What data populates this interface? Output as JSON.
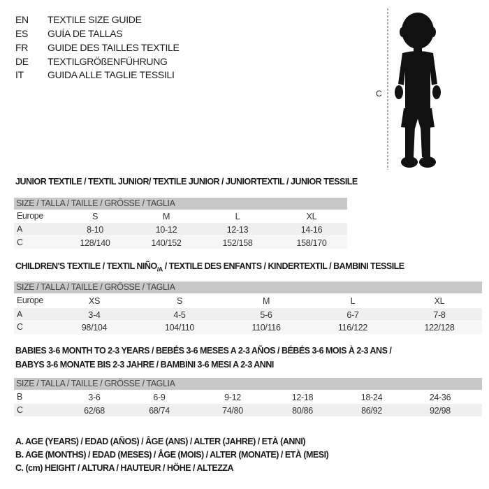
{
  "languages": [
    {
      "code": "EN",
      "title": "TEXTILE SIZE GUIDE"
    },
    {
      "code": "ES",
      "title": "GUÍA DE TALLAS"
    },
    {
      "code": "FR",
      "title": "GUIDE DES TAILLES TEXTILE"
    },
    {
      "code": "DE",
      "title": "TEXTILGRÖßENFÜHRUNG"
    },
    {
      "code": "IT",
      "title": "GUIDA ALLE TAGLIE TESSILI"
    }
  ],
  "figure": {
    "height_label": "C",
    "icon": "child-silhouette"
  },
  "junior": {
    "title": "JUNIOR TEXTILE / TEXTIL JUNIOR/ TEXTILE JUNIOR / JUNIORTEXTIL / JUNIOR TESSILE",
    "header": "SIZE / TALLA / TAILLE / GRÖSSE / TAGLIA",
    "rows": [
      {
        "label": "Europe",
        "values": [
          "S",
          "M",
          "L",
          "XL"
        ]
      },
      {
        "label": "A",
        "values": [
          "8-10",
          "10-12",
          "12-13",
          "14-16"
        ]
      },
      {
        "label": "C",
        "values": [
          "128/140",
          "140/152",
          "152/158",
          "158/170"
        ]
      }
    ]
  },
  "children": {
    "title_a": "CHILDREN'S TEXTILE / TEXTIL NIÑO",
    "title_sub": "/A",
    "title_b": " / TEXTILE DES ENFANTS / KINDERTEXTIL / BAMBINI TESSILE",
    "header": "SIZE / TALLA / TAILLE / GRÖSSE / TAGLIA",
    "rows": [
      {
        "label": "Europe",
        "values": [
          "XS",
          "S",
          "M",
          "L",
          "XL"
        ]
      },
      {
        "label": "A",
        "values": [
          "3-4",
          "4-5",
          "5-6",
          "6-7",
          "7-8"
        ]
      },
      {
        "label": "C",
        "values": [
          "98/104",
          "104/110",
          "110/116",
          "116/122",
          "122/128"
        ]
      }
    ]
  },
  "babies": {
    "title_1": "BABIES 3-6 MONTH TO 2-3 YEARS / BEBÉS 3-6 MESES A 2-3 AÑOS / BÉBÉS 3-6 MOIS À 2-3 ANS /",
    "title_2": "BABYS 3-6 MONATE BIS 2-3 JAHRE / BAMBINI 3-6 MESI A 2-3 ANNI",
    "header": "SIZE / TALLA / TAILLE / GRÖSSE / TAGLIA",
    "rows": [
      {
        "label": "B",
        "values": [
          "3-6",
          "6-9",
          "9-12",
          "12-18",
          "18-24",
          "24-36"
        ]
      },
      {
        "label": "C",
        "values": [
          "62/68",
          "68/74",
          "74/80",
          "80/86",
          "86/92",
          "92/98"
        ]
      }
    ]
  },
  "legend": [
    "A. AGE (YEARS) / EDAD (AÑOS) / ÂGE (ANS) / ALTER (JAHRE) / ETÀ (ANNI)",
    "B. AGE (MONTHS) / EDAD (MESES) / ÂGE (MOIS) / ALTER (MONATE) / ETÀ (MESI)",
    "C. (cm) HEIGHT / ALTURA / HAUTEUR / HÖHE / ALTEZZA"
  ]
}
